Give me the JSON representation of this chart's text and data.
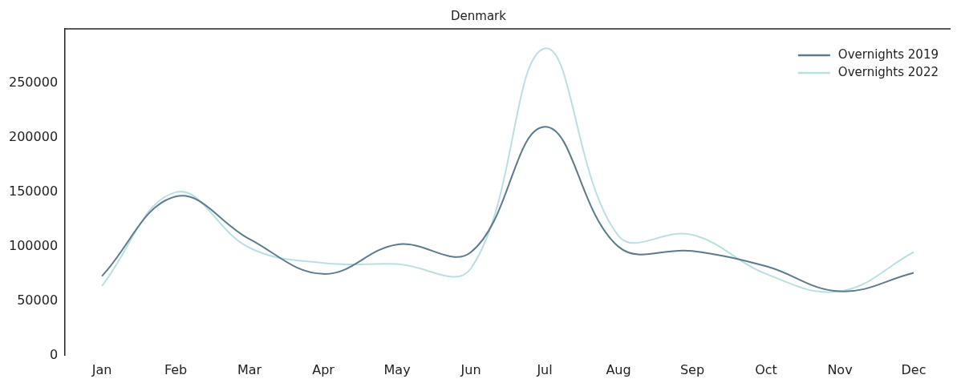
{
  "chart_data": {
    "type": "line",
    "title": "Denmark",
    "categories": [
      "Jan",
      "Feb",
      "Mar",
      "Apr",
      "May",
      "Jun",
      "Jul",
      "Aug",
      "Sep",
      "Oct",
      "Nov",
      "Dec"
    ],
    "series": [
      {
        "name": "Overnights 2019",
        "color": "#5b7b8e",
        "values": [
          73000,
          146000,
          107000,
          75000,
          102000,
          95000,
          210000,
          100000,
          96000,
          82000,
          59000,
          76000
        ]
      },
      {
        "name": "Overnights 2022",
        "color": "#b8e0e4",
        "values": [
          64000,
          150000,
          99000,
          85000,
          84000,
          80000,
          282000,
          110000,
          111000,
          75000,
          59000,
          95000
        ]
      }
    ],
    "ylim": [
      0,
      300000
    ],
    "yticks": [
      0,
      50000,
      100000,
      150000,
      200000,
      250000
    ],
    "grid": false,
    "legend": "top right"
  }
}
